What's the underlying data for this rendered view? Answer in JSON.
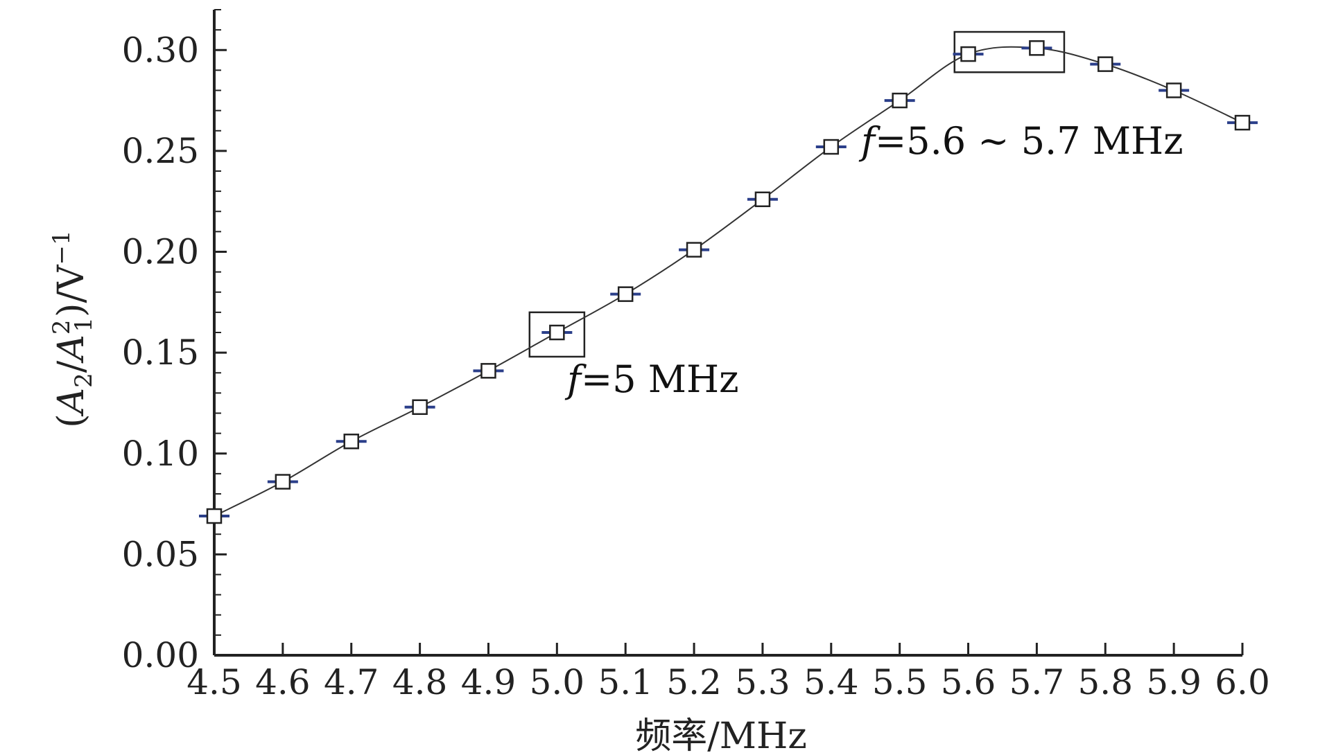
{
  "chart_data": {
    "type": "line",
    "x": [
      4.5,
      4.6,
      4.7,
      4.8,
      4.9,
      5.0,
      5.1,
      5.2,
      5.3,
      5.4,
      5.5,
      5.6,
      5.7,
      5.8,
      5.9,
      6.0
    ],
    "series": [
      {
        "values": [
          0.069,
          0.086,
          0.106,
          0.123,
          0.141,
          0.16,
          0.179,
          0.201,
          0.226,
          0.252,
          0.275,
          0.298,
          0.301,
          0.293,
          0.28,
          0.264
        ],
        "marker": "open-square",
        "error_bars": true
      }
    ],
    "xlabel": "频率/MHz",
    "ylabel": {
      "open": "(",
      "a2_base": "A",
      "a2_sub": "2",
      "slash": "/",
      "a1_base": "A",
      "a1_sup": "2",
      "a1_sub": "1",
      "close": ")",
      "unit_base": "/V",
      "unit_sup": "−1"
    },
    "xlim": [
      4.5,
      6.0
    ],
    "ylim": [
      0.0,
      0.32
    ],
    "x_ticks": [
      "4.5",
      "4.6",
      "4.7",
      "4.8",
      "4.9",
      "5.0",
      "5.1",
      "5.2",
      "5.3",
      "5.4",
      "5.5",
      "5.6",
      "5.7",
      "5.8",
      "5.9",
      "6.0"
    ],
    "y_ticks": [
      "0.00",
      "0.05",
      "0.10",
      "0.15",
      "0.20",
      "0.25",
      "0.30"
    ],
    "grid": false,
    "annotations": [
      {
        "italic": "f",
        "text": "=5 MHz",
        "box_x_range": [
          4.96,
          5.04
        ],
        "box_y_range": [
          0.148,
          0.17
        ]
      },
      {
        "italic": "f",
        "text": "=5.6 ~ 5.7 MHz",
        "box_x_range": [
          5.58,
          5.74
        ],
        "box_y_range": [
          0.289,
          0.309
        ]
      }
    ],
    "colors": {
      "line": "#333333",
      "marker": "#222222",
      "error_bar": "#2b3f8a",
      "axis": "#222222"
    }
  }
}
